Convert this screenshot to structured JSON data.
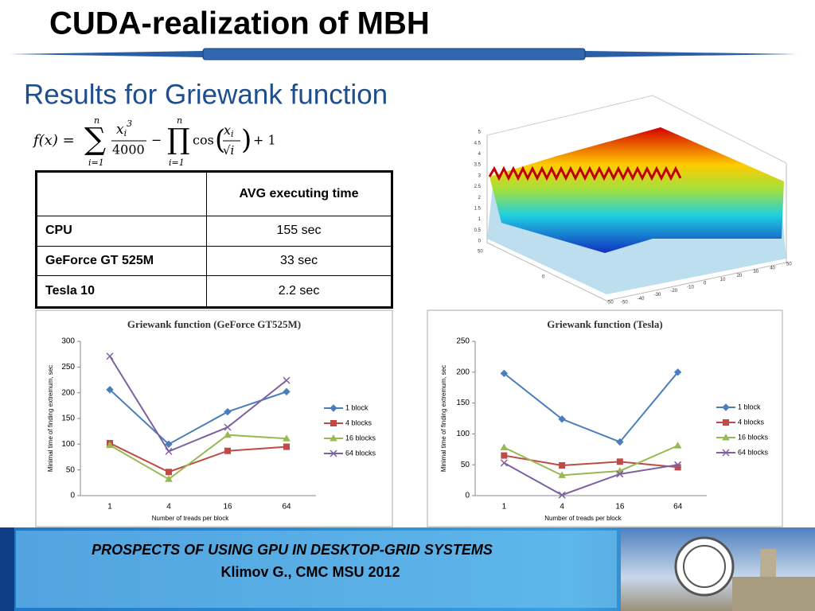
{
  "header": {
    "title": "CUDA-realization of MBH",
    "subtitle": "Results for Griewank function"
  },
  "formula": {
    "lhs": "f(x) =",
    "sum": "∑",
    "prod": "∏",
    "upper": "n",
    "lower": "i=1",
    "base": "x",
    "sub": "i",
    "exp": "3",
    "den": "4000",
    "minus": "−",
    "cos": "cos",
    "root": "√i",
    "plus": "+ 1"
  },
  "table": {
    "header": "AVG executing time",
    "rows": [
      [
        "CPU",
        "155 sec"
      ],
      [
        "GeForce GT 525M",
        "33 sec"
      ],
      [
        "Tesla 10",
        "2.2 sec"
      ]
    ]
  },
  "surface": {
    "zticks": [
      0,
      0.5,
      1,
      1.5,
      2,
      2.5,
      3,
      3.5,
      4,
      4.5,
      5
    ],
    "xticks": [
      -50,
      -40,
      -30,
      -20,
      -10,
      0,
      10,
      20,
      30,
      40,
      50
    ],
    "yticks": [
      50,
      0,
      -50
    ]
  },
  "chart_data": [
    {
      "type": "line",
      "title": "Griewank function (GeForce GT525M)",
      "x_label": "Number of treads per block",
      "y_label": "Minimal time of finding extremum, sec",
      "categories": [
        "1",
        "4",
        "16",
        "64"
      ],
      "ylim": [
        0,
        300
      ],
      "yticks": [
        0,
        50,
        100,
        150,
        200,
        250,
        300
      ],
      "grid": false,
      "legend": "right",
      "series": [
        {
          "name": "1 block",
          "color": "#4a7ebb",
          "values": [
            206,
            100,
            163,
            202
          ]
        },
        {
          "name": "4 blocks",
          "color": "#be4b48",
          "values": [
            102,
            46,
            87,
            95
          ]
        },
        {
          "name": "16 blocks",
          "color": "#98b954",
          "values": [
            98,
            32,
            118,
            111
          ]
        },
        {
          "name": "64 blocks",
          "color": "#7d60a0",
          "values": [
            271,
            86,
            133,
            224
          ]
        }
      ]
    },
    {
      "type": "line",
      "title": "Griewank function (Tesla)",
      "x_label": "Number of treads per block",
      "y_label": "Minimal time of finding extremum, sec",
      "categories": [
        "1",
        "4",
        "16",
        "64"
      ],
      "ylim": [
        0,
        250
      ],
      "yticks": [
        0,
        50,
        100,
        150,
        200,
        250
      ],
      "grid": false,
      "legend": "right",
      "series": [
        {
          "name": "1 block",
          "color": "#4a7ebb",
          "values": [
            198,
            124,
            87,
            200
          ]
        },
        {
          "name": "4 blocks",
          "color": "#be4b48",
          "values": [
            65,
            49,
            55,
            46
          ]
        },
        {
          "name": "16 blocks",
          "color": "#98b954",
          "values": [
            78,
            33,
            40,
            81
          ]
        },
        {
          "name": "64 blocks",
          "color": "#7d60a0",
          "values": [
            53,
            1,
            35,
            50
          ]
        }
      ]
    }
  ],
  "footer": {
    "line1": "PROSPECTS  OF  USING  GPU  IN  DESKTOP-GRID  SYSTEMS",
    "line2": "Klimov G., CMC MSU 2012"
  }
}
